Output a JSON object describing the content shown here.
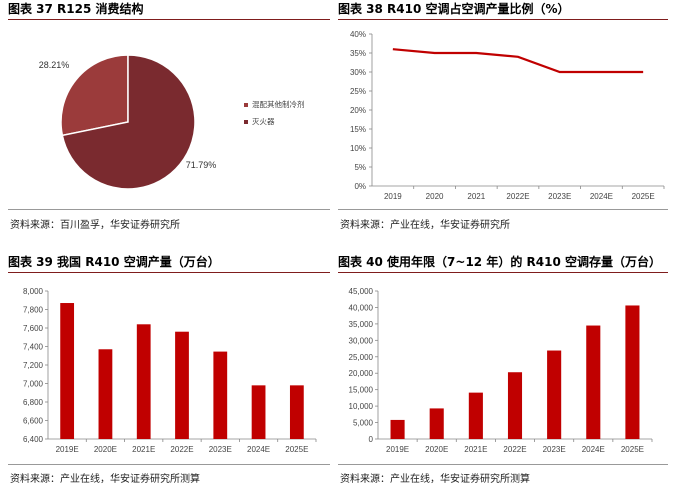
{
  "charts": [
    {
      "figure_title": "图表 37 R125 消费结构",
      "source": "资料来源：百川盈孚，华安证券研究所",
      "chart_data": {
        "type": "pie",
        "labels": [
          "混配其他制冷剂",
          "灭火器"
        ],
        "values": [
          28.21,
          71.79
        ],
        "value_labels": [
          "28.21%",
          "71.79%"
        ],
        "colors": [
          "#9b3b3b",
          "#7a2a2f"
        ],
        "legend": "right"
      }
    },
    {
      "figure_title": "图表 38 R410 空调占空调产量比例（%）",
      "source": "资料来源：产业在线，华安证券研究所",
      "chart_data": {
        "type": "line",
        "categories": [
          "2019",
          "2020",
          "2021",
          "2022E",
          "2023E",
          "2024E",
          "2025E"
        ],
        "values": [
          36,
          35,
          35,
          34,
          30,
          30,
          30
        ],
        "ylim": [
          0,
          40
        ],
        "yticks": [
          "0%",
          "5%",
          "10%",
          "15%",
          "20%",
          "25%",
          "30%",
          "35%",
          "40%"
        ],
        "color": "#c00000"
      }
    },
    {
      "figure_title": "图表 39 我国 R410 空调产量（万台）",
      "source": "资料来源：产业在线，华安证券研究所测算",
      "chart_data": {
        "type": "bar",
        "categories": [
          "2019E",
          "2020E",
          "2021E",
          "2022E",
          "2023E",
          "2024E",
          "2025E"
        ],
        "values": [
          7870,
          7370,
          7640,
          7560,
          7345,
          6980,
          6980
        ],
        "ylim": [
          6400,
          8000
        ],
        "yticks": [
          "6,400",
          "6,600",
          "6,800",
          "7,000",
          "7,200",
          "7,400",
          "7,600",
          "7,800",
          "8,000"
        ],
        "color": "#c00000"
      }
    },
    {
      "figure_title": "图表 40 使用年限（7~12 年）的 R410 空调存量（万台）",
      "source": "资料来源：产业在线，华安证券研究所测算",
      "chart_data": {
        "type": "bar",
        "categories": [
          "2019E",
          "2020E",
          "2021E",
          "2022E",
          "2023E",
          "2024E",
          "2025E"
        ],
        "values": [
          5800,
          9300,
          14100,
          20300,
          26900,
          34500,
          40600
        ],
        "ylim": [
          0,
          45000
        ],
        "yticks": [
          "0",
          "5,000",
          "10,000",
          "15,000",
          "20,000",
          "25,000",
          "30,000",
          "35,000",
          "40,000",
          "45,000"
        ],
        "color": "#c00000"
      }
    }
  ]
}
